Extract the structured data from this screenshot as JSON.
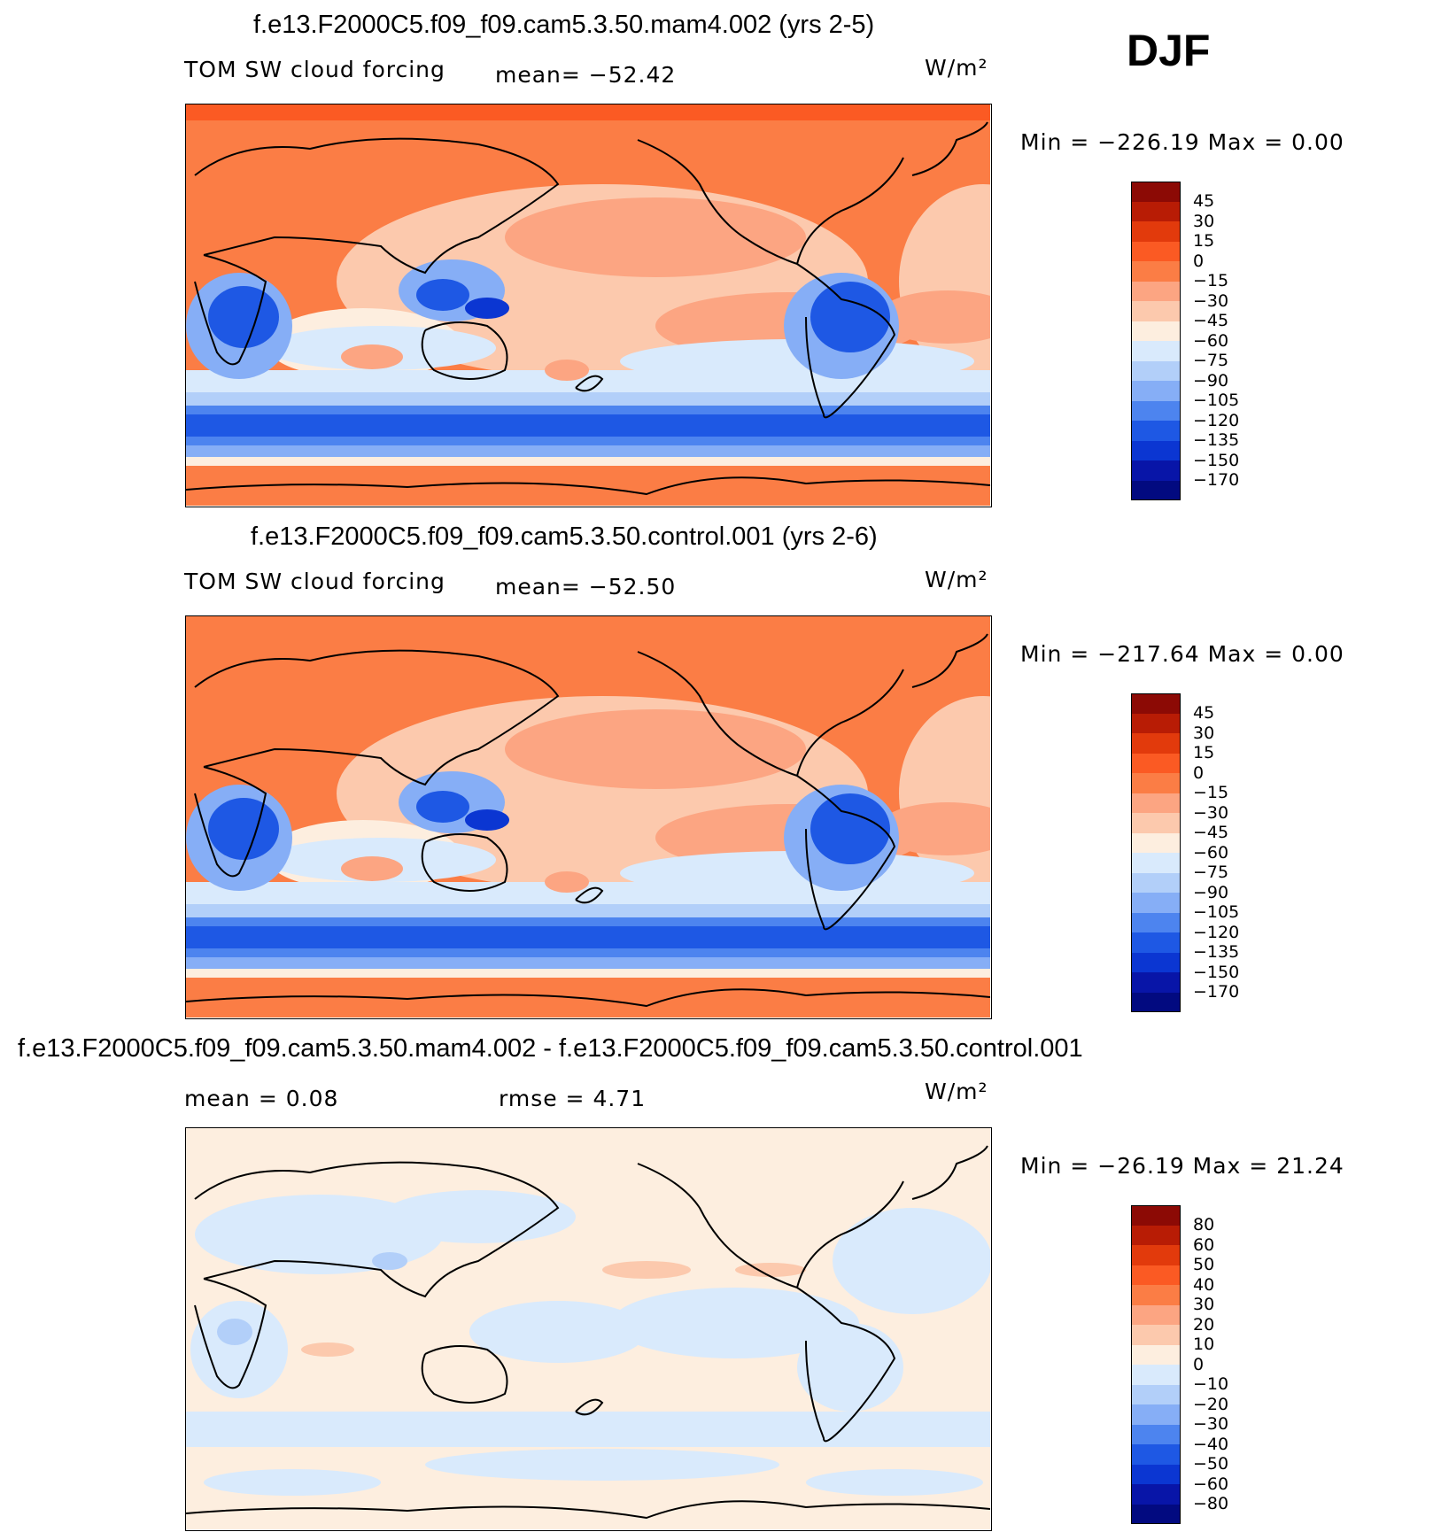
{
  "season": "DJF",
  "panels": [
    {
      "title": "f.e13.F2000C5.f09_f09.cam5.3.50.mam4.002 (yrs 2-5)",
      "left_label": "TOM SW cloud forcing",
      "mid_label": "mean=  −52.42",
      "units": "W/m²",
      "minmax": "Min = −226.19 Max =     0.00",
      "legend_labels": [
        "45",
        "30",
        "15",
        "0",
        "−15",
        "−30",
        "−45",
        "−60",
        "−75",
        "−90",
        "−105",
        "−120",
        "−135",
        "−150",
        "−170"
      ],
      "kind": "abs"
    },
    {
      "title": "f.e13.F2000C5.f09_f09.cam5.3.50.control.001 (yrs 2-6)",
      "left_label": "TOM SW cloud forcing",
      "mid_label": "mean=  −52.50",
      "units": "W/m²",
      "minmax": "Min = −217.64 Max =     0.00",
      "legend_labels": [
        "45",
        "30",
        "15",
        "0",
        "−15",
        "−30",
        "−45",
        "−60",
        "−75",
        "−90",
        "−105",
        "−120",
        "−135",
        "−150",
        "−170"
      ],
      "kind": "abs"
    },
    {
      "title": "f.e13.F2000C5.f09_f09.cam5.3.50.mam4.002 - f.e13.F2000C5.f09_f09.cam5.3.50.control.001",
      "left_label": "mean =    0.08",
      "mid_label": "rmse =    4.71",
      "units": "W/m²",
      "minmax": "Min = −26.19 Max =  21.24",
      "legend_labels": [
        "80",
        "60",
        "50",
        "40",
        "30",
        "20",
        "10",
        "0",
        "−10",
        "−20",
        "−30",
        "−40",
        "−50",
        "−60",
        "−80"
      ],
      "kind": "diff"
    }
  ],
  "colors": {
    "scale": [
      "#8c0a05",
      "#b81c05",
      "#e23a0c",
      "#fb5a23",
      "#fb7d45",
      "#fca582",
      "#fcc9ad",
      "#fdeedf",
      "#d9eafc",
      "#b2cff9",
      "#86aef6",
      "#4d84ef",
      "#1e58e4",
      "#0b36d2",
      "#0815a8",
      "#020a80"
    ],
    "land_abs": "#fb7d45",
    "ocean_diff": "#fdeedf"
  }
}
